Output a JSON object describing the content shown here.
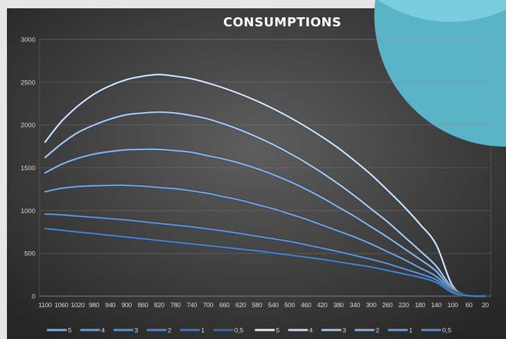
{
  "chart_data": {
    "type": "line",
    "title": "CONSUMPTIONS",
    "xlabel": "",
    "ylabel": "",
    "ylim": [
      0,
      3000
    ],
    "yticks": [
      0,
      500,
      1000,
      1500,
      2000,
      2500,
      3000
    ],
    "grid": true,
    "legend_position": "bottom",
    "categories": [
      "1100",
      "1060",
      "1020",
      "980",
      "940",
      "900",
      "860",
      "820",
      "780",
      "740",
      "700",
      "660",
      "620",
      "580",
      "540",
      "500",
      "460",
      "420",
      "380",
      "340",
      "300",
      "260",
      "220",
      "180",
      "140",
      "100",
      "60",
      "20"
    ],
    "series": [
      {
        "name": "5",
        "color": "#cfe3f5",
        "values": [
          1800,
          2040,
          2220,
          2360,
          2460,
          2530,
          2570,
          2590,
          2570,
          2540,
          2490,
          2430,
          2360,
          2280,
          2190,
          2090,
          1980,
          1860,
          1730,
          1580,
          1420,
          1240,
          1050,
          840,
          600,
          120,
          10,
          0
        ]
      },
      {
        "name": "4",
        "color": "#a9c9ec",
        "values": [
          1620,
          1780,
          1910,
          2000,
          2070,
          2120,
          2140,
          2150,
          2140,
          2110,
          2070,
          2010,
          1940,
          1860,
          1770,
          1670,
          1560,
          1440,
          1310,
          1170,
          1020,
          870,
          700,
          530,
          350,
          90,
          8,
          0
        ]
      },
      {
        "name": "3",
        "color": "#86b2e3",
        "values": [
          1440,
          1540,
          1610,
          1660,
          1690,
          1710,
          1715,
          1715,
          1700,
          1680,
          1640,
          1600,
          1550,
          1490,
          1420,
          1340,
          1250,
          1150,
          1040,
          930,
          810,
          690,
          560,
          430,
          290,
          70,
          6,
          0
        ]
      },
      {
        "name": "2",
        "color": "#6fa0da",
        "values": [
          1220,
          1260,
          1280,
          1290,
          1295,
          1295,
          1285,
          1270,
          1255,
          1230,
          1200,
          1160,
          1120,
          1070,
          1020,
          960,
          900,
          830,
          760,
          690,
          610,
          520,
          430,
          330,
          230,
          60,
          5,
          0
        ]
      },
      {
        "name": "1",
        "color": "#5c8fcf",
        "values": [
          960,
          950,
          935,
          920,
          905,
          890,
          870,
          850,
          830,
          810,
          785,
          760,
          730,
          700,
          670,
          640,
          600,
          560,
          520,
          475,
          430,
          380,
          320,
          260,
          190,
          50,
          4,
          0
        ]
      },
      {
        "name": "0,5",
        "color": "#4a7fc2",
        "values": [
          790,
          770,
          750,
          730,
          710,
          690,
          670,
          650,
          630,
          610,
          590,
          570,
          550,
          530,
          505,
          480,
          455,
          430,
          400,
          370,
          340,
          300,
          260,
          220,
          160,
          40,
          3,
          0
        ]
      }
    ],
    "legend_entries": [
      "5",
      "4",
      "3",
      "2",
      "1",
      "0,5",
      "5",
      "4",
      "3",
      "2",
      "1",
      "0,5"
    ],
    "legend_colors": [
      "#7fb2e8",
      "#6aa2df",
      "#5a94d6",
      "#4f87cb",
      "#4579bd",
      "#3d6cad",
      "#e8f0f8",
      "#cfe0f3",
      "#a9c9ec",
      "#86b2e3",
      "#6fa0da",
      "#5c8fcf"
    ]
  },
  "colors": {
    "background_light": "#e6e6e6",
    "plot_gradient_center": "#5e5e5e",
    "plot_gradient_edge": "#262626",
    "accent_circle": "#5ab4c8",
    "accent_circle_light": "#7ccfe0",
    "tick_text": "#d9d9d9",
    "grid": "#8a8a8a"
  }
}
